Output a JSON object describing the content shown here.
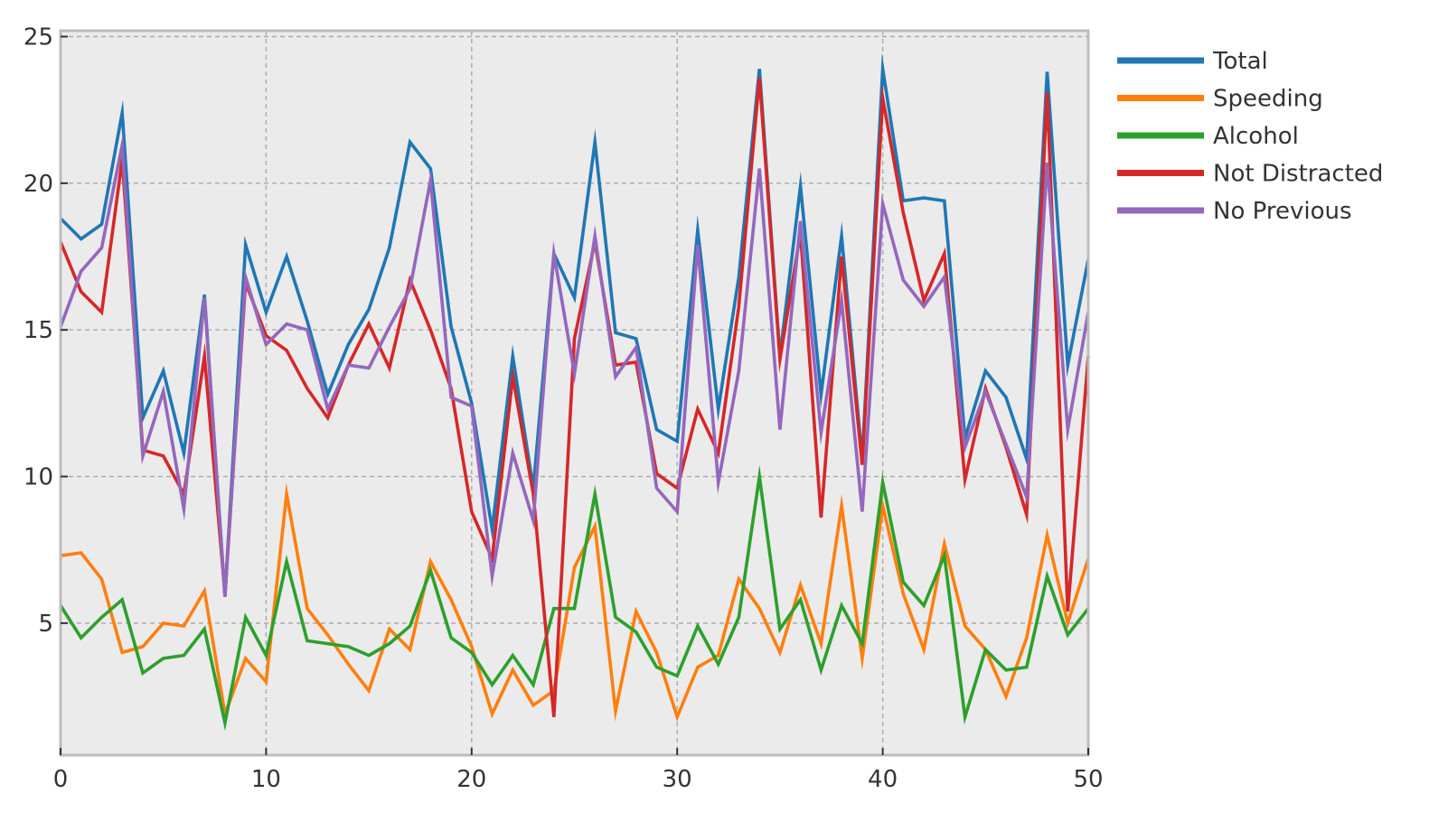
{
  "chart_data": {
    "type": "line",
    "title": "",
    "xlabel": "",
    "ylabel": "",
    "xlim": [
      0,
      50
    ],
    "ylim": [
      0.5,
      25.2
    ],
    "xticks": [
      0,
      10,
      20,
      30,
      40,
      50
    ],
    "yticks": [
      5,
      10,
      15,
      20,
      25
    ],
    "grid": true,
    "legend_position": "outside-right-top",
    "colors": {
      "background": "#ebebeb",
      "frame": "#bcbcbc",
      "grid": "#aaaaaa"
    },
    "x": [
      0,
      1,
      2,
      3,
      4,
      5,
      6,
      7,
      8,
      9,
      10,
      11,
      12,
      13,
      14,
      15,
      16,
      17,
      18,
      19,
      20,
      21,
      22,
      23,
      24,
      25,
      26,
      27,
      28,
      29,
      30,
      31,
      32,
      33,
      34,
      35,
      36,
      37,
      38,
      39,
      40,
      41,
      42,
      43,
      44,
      45,
      46,
      47,
      48,
      49,
      50
    ],
    "series": [
      {
        "name": "Total",
        "color": "#1f77b4",
        "values": [
          18.8,
          18.1,
          18.6,
          22.4,
          12.0,
          13.6,
          10.8,
          16.2,
          5.9,
          17.9,
          15.6,
          17.5,
          15.3,
          12.8,
          14.5,
          15.7,
          17.8,
          21.4,
          20.5,
          15.1,
          12.5,
          8.2,
          14.1,
          9.6,
          17.6,
          16.1,
          21.4,
          14.9,
          14.7,
          11.6,
          11.2,
          18.4,
          12.3,
          16.8,
          23.9,
          14.1,
          19.9,
          12.8,
          18.2,
          10.6,
          23.9,
          19.4,
          19.5,
          19.4,
          11.3,
          13.6,
          12.7,
          10.6,
          23.8,
          13.8,
          17.4
        ]
      },
      {
        "name": "Speeding",
        "color": "#ff7f0e",
        "values": [
          7.3,
          7.4,
          6.5,
          4.0,
          4.2,
          5.0,
          4.9,
          6.1,
          1.9,
          3.8,
          3.0,
          9.4,
          5.5,
          4.6,
          3.6,
          2.7,
          4.8,
          4.1,
          7.1,
          5.8,
          4.2,
          1.9,
          3.4,
          2.2,
          2.7,
          6.9,
          8.3,
          2.0,
          5.4,
          4.0,
          1.8,
          3.5,
          3.9,
          6.5,
          5.5,
          4.0,
          6.3,
          4.3,
          9.0,
          3.8,
          9.0,
          6.0,
          4.1,
          7.7,
          4.9,
          4.1,
          2.5,
          4.5,
          8.0,
          5.0,
          7.2
        ]
      },
      {
        "name": "Alcohol",
        "color": "#2ca02c",
        "values": [
          5.6,
          4.5,
          5.2,
          5.8,
          3.3,
          3.8,
          3.9,
          4.8,
          1.6,
          5.2,
          3.9,
          7.1,
          4.4,
          4.3,
          4.2,
          3.9,
          4.3,
          4.9,
          6.8,
          4.5,
          4.0,
          2.9,
          3.9,
          2.9,
          5.5,
          5.5,
          9.4,
          5.2,
          4.7,
          3.5,
          3.2,
          4.9,
          3.6,
          5.2,
          10.0,
          4.8,
          5.8,
          3.4,
          5.6,
          4.3,
          9.8,
          6.4,
          5.6,
          7.3,
          1.8,
          4.1,
          3.4,
          3.5,
          6.6,
          4.6,
          5.5
        ]
      },
      {
        "name": "Not Distracted",
        "color": "#d62728",
        "values": [
          18.0,
          16.3,
          15.6,
          20.8,
          10.9,
          10.7,
          9.4,
          14.1,
          6.0,
          16.6,
          14.8,
          14.3,
          13.0,
          12.0,
          13.8,
          15.2,
          13.7,
          16.7,
          15.0,
          13.0,
          8.8,
          7.2,
          13.4,
          9.4,
          1.8,
          14.7,
          18.0,
          13.8,
          13.9,
          10.1,
          9.6,
          12.3,
          10.8,
          15.8,
          23.6,
          14.0,
          18.3,
          8.6,
          17.5,
          10.4,
          22.9,
          19.0,
          16.0,
          17.6,
          9.9,
          13.0,
          11.0,
          8.7,
          23.1,
          5.4,
          14.1
        ]
      },
      {
        "name": "No Previous",
        "color": "#9467bd",
        "values": [
          15.1,
          17.0,
          17.8,
          21.3,
          10.7,
          12.9,
          8.9,
          16.1,
          5.9,
          16.8,
          14.5,
          15.2,
          15.0,
          12.3,
          13.8,
          13.7,
          15.1,
          16.4,
          20.1,
          12.7,
          12.4,
          6.6,
          10.8,
          8.5,
          17.6,
          13.5,
          18.2,
          13.4,
          14.4,
          9.6,
          8.8,
          17.9,
          9.8,
          13.6,
          20.5,
          11.6,
          18.7,
          11.5,
          16.0,
          8.8,
          19.3,
          16.7,
          15.8,
          16.8,
          11.0,
          12.9,
          11.1,
          9.3,
          20.7,
          11.6,
          15.6
        ]
      }
    ]
  }
}
